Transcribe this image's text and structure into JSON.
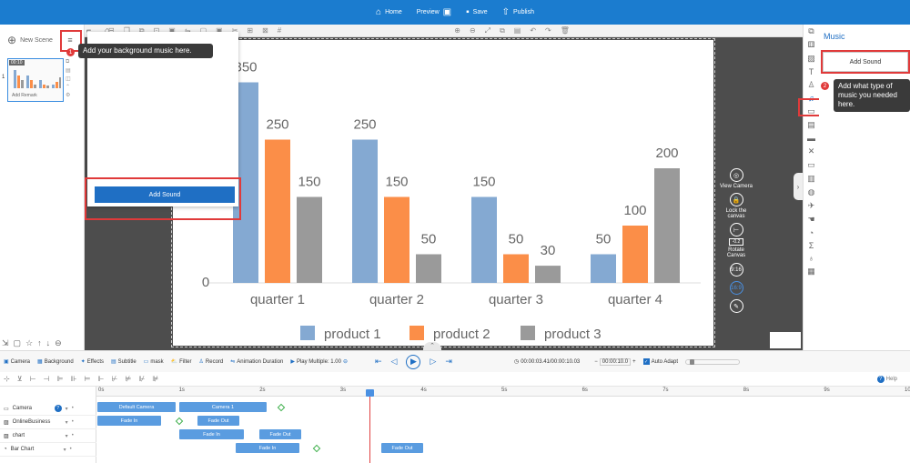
{
  "topbar": {
    "home": "Home",
    "preview": "Preview",
    "save": "Save",
    "publish": "Publish"
  },
  "left": {
    "new_scene": "New Scene",
    "scene_number": "1",
    "scene_time": "00:10",
    "add_remark": "Add Remark"
  },
  "music_popup": {
    "add_sound": "Add Sound"
  },
  "tooltip1": {
    "badge": "1",
    "text": "Add your background music here."
  },
  "tooltip2": {
    "badge": "2",
    "text": "Add what type of music you needed here."
  },
  "music_panel": {
    "title": "Music",
    "add_sound": "Add Sound"
  },
  "side_controls": {
    "view_camera": "View Camera",
    "lock_canvas": "Lock the canvas",
    "rotate_value": "-0.2",
    "rotate_canvas": "Rotate Canvas",
    "ratio_916": "9:16",
    "ratio_169": "16:9"
  },
  "chart_data": {
    "type": "bar",
    "categories": [
      "quarter 1",
      "quarter 2",
      "quarter 3",
      "quarter 4"
    ],
    "series": [
      {
        "name": "product 1",
        "values": [
          350,
          250,
          150,
          50
        ],
        "color": "#84a9d2"
      },
      {
        "name": "product 2",
        "values": [
          250,
          150,
          50,
          100
        ],
        "color": "#fb8e48"
      },
      {
        "name": "product 3",
        "values": [
          150,
          50,
          30,
          200
        ],
        "color": "#9a9a9a"
      }
    ],
    "ylim": [
      0,
      400
    ],
    "ytick_label": "0",
    "legend": "bottom"
  },
  "timeline": {
    "camera": "Camera",
    "background": "Background",
    "effects": "Effects",
    "subtitle": "Subtitle",
    "mask": "mask",
    "filter": "Filter",
    "record": "Record",
    "animation_duration": "Animation Duration",
    "play_multiple": "Play Multiple: 1.00",
    "time": "00:00:03.41/00:00:10.03",
    "zoom_value": "00:00:10.0",
    "auto_adapt": "Auto Adapt",
    "help": "Help",
    "ruler": [
      "0s",
      "1s",
      "2s",
      "3s",
      "4s",
      "5s",
      "6s",
      "7s",
      "8s",
      "9s",
      "10s"
    ],
    "tracks": [
      {
        "name": "Camera",
        "clips": [
          {
            "label": "Default Camera"
          },
          {
            "label": "Camera 1"
          }
        ]
      },
      {
        "name": "OnlineBusiness",
        "clips": [
          {
            "label": "Fade In"
          },
          {
            "label": "Fade Out"
          }
        ]
      },
      {
        "name": "chart",
        "clips": [
          {
            "label": "Fade In"
          },
          {
            "label": "Fade Out"
          }
        ]
      },
      {
        "name": "Bar Chart",
        "clips": [
          {
            "label": "Fade In"
          },
          {
            "label": "Fade Out"
          }
        ]
      }
    ]
  }
}
